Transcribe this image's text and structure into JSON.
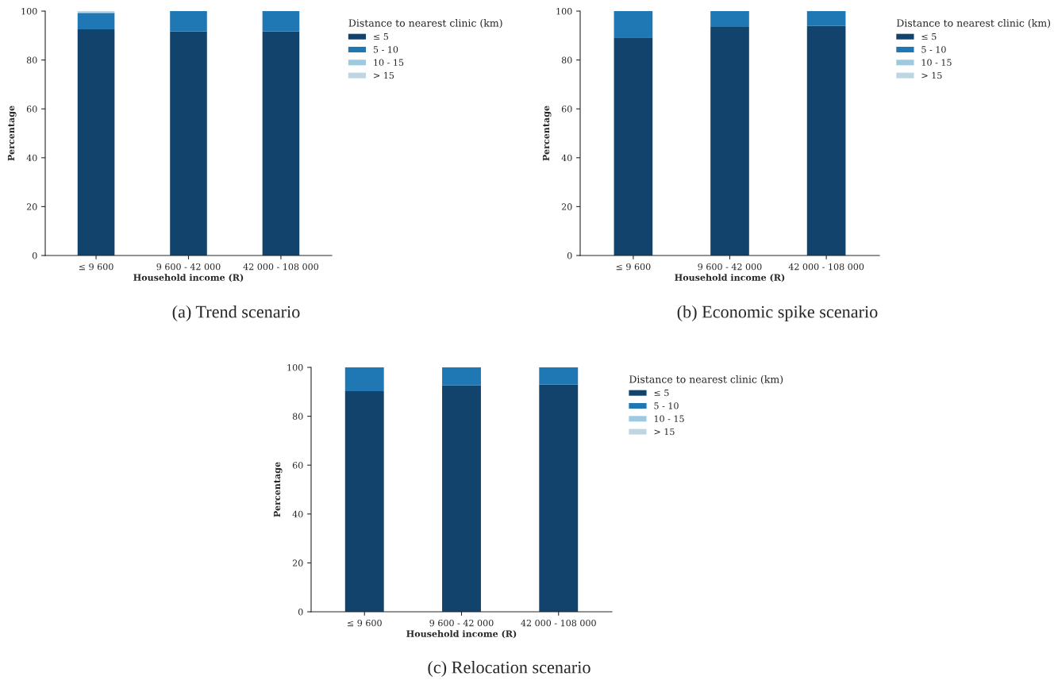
{
  "chart_data": [
    {
      "type": "bar",
      "stacked": true,
      "xlabel": "Household income (R)",
      "ylabel": "Percentage",
      "legend_title": "Distance to nearest clinic (km)",
      "legend": "top right",
      "grid": false,
      "annotations": [
        "(a) Trend scenario"
      ],
      "categories": [
        "≤ 9 600",
        "9 600 - 42 000",
        "42 000 - 108 000"
      ],
      "ylim": [
        0,
        100
      ],
      "yticks": [
        0,
        20,
        40,
        60,
        80,
        100
      ],
      "series": [
        {
          "name": "≤ 5",
          "color": "#12436d",
          "values": [
            92.5,
            91.7,
            91.7
          ]
        },
        {
          "name": "5 - 10",
          "color": "#1f77b4",
          "values": [
            6.8,
            8.3,
            8.3
          ]
        },
        {
          "name": "10 - 15",
          "color": "#9ecae1",
          "values": [
            0,
            0,
            0
          ]
        },
        {
          "name": "> 15",
          "color": "#bfd6e2",
          "values": [
            0.7,
            0,
            0
          ]
        }
      ]
    },
    {
      "type": "bar",
      "stacked": true,
      "xlabel": "Household income (R)",
      "ylabel": "Percentage",
      "legend_title": "Distance to nearest clinic (km)",
      "legend": "top right",
      "grid": false,
      "annotations": [
        "(b) Economic spike scenario"
      ],
      "categories": [
        "≤ 9 600",
        "9 600 - 42 000",
        "42 000 - 108 000"
      ],
      "ylim": [
        0,
        100
      ],
      "yticks": [
        0,
        20,
        40,
        60,
        80,
        100
      ],
      "series": [
        {
          "name": "≤ 5",
          "color": "#12436d",
          "values": [
            89.2,
            93.5,
            93.9
          ]
        },
        {
          "name": "5 - 10",
          "color": "#1f77b4",
          "values": [
            10.8,
            6.5,
            6.1
          ]
        },
        {
          "name": "10 - 15",
          "color": "#9ecae1",
          "values": [
            0,
            0,
            0
          ]
        },
        {
          "name": "> 15",
          "color": "#bfd6e2",
          "values": [
            0,
            0,
            0
          ]
        }
      ]
    },
    {
      "type": "bar",
      "stacked": true,
      "xlabel": "Household income (R)",
      "ylabel": "Percentage",
      "legend_title": "Distance to nearest clinic (km)",
      "legend": "top right",
      "grid": false,
      "annotations": [
        "(c) Relocation scenario"
      ],
      "categories": [
        "≤ 9 600",
        "9 600 - 42 000",
        "42 000 - 108 000"
      ],
      "ylim": [
        0,
        100
      ],
      "yticks": [
        0,
        20,
        40,
        60,
        80,
        100
      ],
      "series": [
        {
          "name": "≤ 5",
          "color": "#12436d",
          "values": [
            90.3,
            92.7,
            92.9
          ]
        },
        {
          "name": "5 - 10",
          "color": "#1f77b4",
          "values": [
            9.7,
            7.3,
            7.1
          ]
        },
        {
          "name": "10 - 15",
          "color": "#9ecae1",
          "values": [
            0,
            0,
            0
          ]
        },
        {
          "name": "> 15",
          "color": "#bfd6e2",
          "values": [
            0,
            0,
            0
          ]
        }
      ]
    }
  ]
}
